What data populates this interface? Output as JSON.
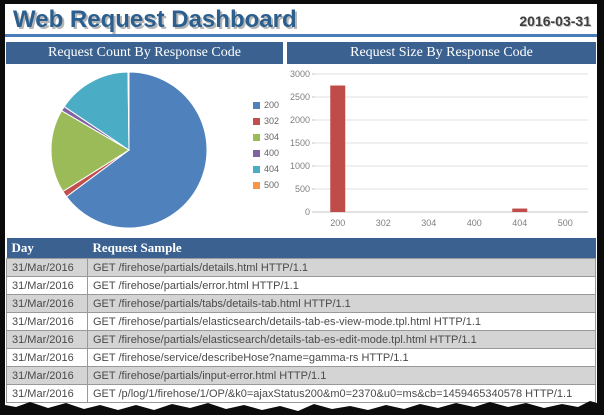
{
  "header": {
    "title": "Web Request Dashboard",
    "date": "2016-03-31"
  },
  "chart_data": [
    {
      "type": "pie",
      "title": "Request Count By Response Code",
      "categories": [
        "200",
        "302",
        "304",
        "400",
        "404",
        "500"
      ],
      "values": [
        64.8,
        1.3,
        17.3,
        1.0,
        15.4,
        0.2
      ],
      "value_note": "estimated percent of pie",
      "colors": [
        "#4F81BD",
        "#C0504D",
        "#9BBB59",
        "#8064A2",
        "#4BACC6",
        "#F79646"
      ],
      "legend_position": "right"
    },
    {
      "type": "bar",
      "title": "Request Size By Response Code",
      "categories": [
        "200",
        "302",
        "304",
        "400",
        "404",
        "500"
      ],
      "values": [
        2750,
        0,
        0,
        0,
        75,
        0
      ],
      "ylim": [
        0,
        3000
      ],
      "ytick_step": 500,
      "yticks": [
        "0",
        "500",
        "1000",
        "1500",
        "2000",
        "2500",
        "3000"
      ],
      "bar_color": "#BF4C48",
      "grid": true,
      "xlabel": "",
      "ylabel": ""
    }
  ],
  "table": {
    "columns": [
      "Day",
      "Request Sample"
    ],
    "rows": [
      [
        "31/Mar/2016",
        "GET /firehose/partials/details.html HTTP/1.1"
      ],
      [
        "31/Mar/2016",
        "GET /firehose/partials/error.html HTTP/1.1"
      ],
      [
        "31/Mar/2016",
        "GET /firehose/partials/tabs/details-tab.html HTTP/1.1"
      ],
      [
        "31/Mar/2016",
        "GET /firehose/partials/elasticsearch/details-tab-es-view-mode.tpl.html HTTP/1.1"
      ],
      [
        "31/Mar/2016",
        "GET /firehose/partials/elasticsearch/details-tab-es-edit-mode.tpl.html HTTP/1.1"
      ],
      [
        "31/Mar/2016",
        "GET /firehose/service/describeHose?name=gamma-rs HTTP/1.1"
      ],
      [
        "31/Mar/2016",
        "GET /firehose/partials/input-error.html HTTP/1.1"
      ],
      [
        "31/Mar/2016",
        "GET /p/log/1/firehose/1/OP/&k0=ajaxStatus200&m0=2370&u0=ms&cb=1459465340578 HTTP/1.1"
      ]
    ]
  },
  "colors": {
    "accent_header_bar": "#3A618F",
    "title_text": "#2A5F8F",
    "rule_blue": "#4A7CB8",
    "row_alt_gray": "#D4D4D4",
    "frame_black": "#0B0B0B"
  }
}
